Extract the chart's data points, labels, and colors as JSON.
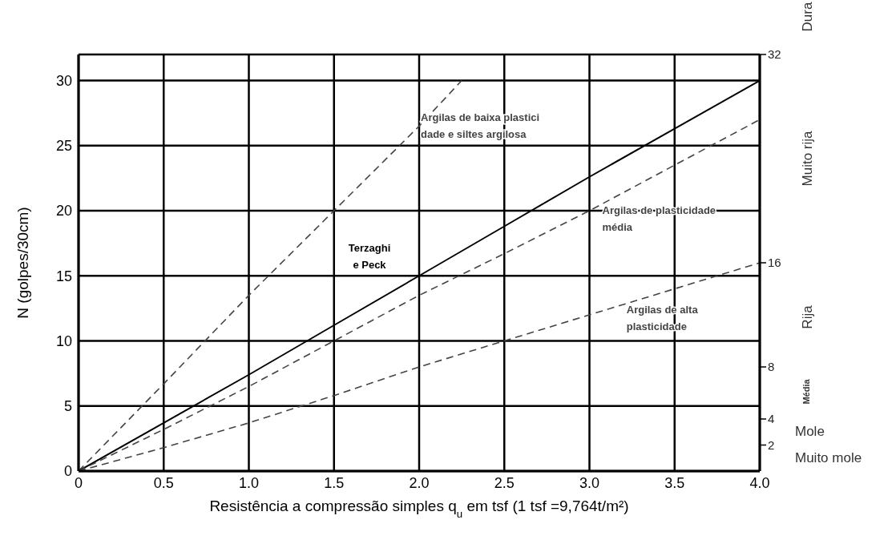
{
  "chart_data": {
    "type": "line",
    "xlabel": "Resistência a compressão simples q$_{u}$ em tsf (1 tsf =9,764t/m²)",
    "ylabel": "N (golpes/30cm)",
    "xlim": [
      0,
      4
    ],
    "xticks": [
      0,
      {
        "value": 0.5,
        "label": "0.5"
      },
      {
        "value": 1,
        "label": "1.0"
      },
      {
        "value": 1.5,
        "label": "1.5"
      },
      {
        "value": 2,
        "label": "2.0"
      },
      {
        "value": 2.5,
        "label": "2.5"
      },
      {
        "value": 3,
        "label": "3.0"
      },
      {
        "value": 3.5,
        "label": "3.5"
      },
      {
        "value": 4,
        "label": "4.0"
      }
    ],
    "ylim": [
      0,
      32
    ],
    "yticks": [
      0,
      5,
      10,
      15,
      20,
      25,
      30
    ],
    "y2lim": [
      0,
      32
    ],
    "y2ticks": [
      2,
      4,
      8,
      16,
      32
    ],
    "grid": true,
    "marker": "none",
    "series": [
      {
        "name": "Argilas de baixa plastici\ndade e siltes argilosa",
        "color": "#444444",
        "line_style": "dashed",
        "x": [
          0,
          0.5,
          1,
          1.5,
          2,
          2.25
        ],
        "values": [
          0,
          6.7,
          13.5,
          20,
          26.5,
          30
        ]
      },
      {
        "name": "Terzaghi\ne Peck",
        "color": "#000000",
        "line_style": "solid",
        "x": [
          0,
          0.5,
          1,
          1.5,
          2,
          2.5,
          3,
          3.5,
          4
        ],
        "values": [
          0,
          3.7,
          7.4,
          11.2,
          15,
          18.8,
          22.6,
          26.3,
          30
        ]
      },
      {
        "name": "Argilas de plasticidade\nmédia",
        "color": "#444444",
        "line_style": "dashed",
        "x": [
          0,
          0.5,
          1,
          1.5,
          2,
          2.5,
          3,
          3.5,
          4
        ],
        "values": [
          0,
          3.2,
          6.5,
          10,
          13.5,
          16.7,
          20,
          23.5,
          27
        ]
      },
      {
        "name": "Argilas de alta\nplasticidade",
        "color": "#444444",
        "line_style": "dashed",
        "x": [
          0,
          0.5,
          1,
          1.5,
          2,
          2.5,
          3,
          3.5,
          4
        ],
        "values": [
          0,
          1.8,
          3.7,
          5.8,
          8,
          10,
          12,
          14,
          16
        ]
      }
    ],
    "annotations": [
      "Dura",
      "Muito rija",
      "Rija",
      "Média",
      "Mole",
      "Muito mole"
    ]
  }
}
